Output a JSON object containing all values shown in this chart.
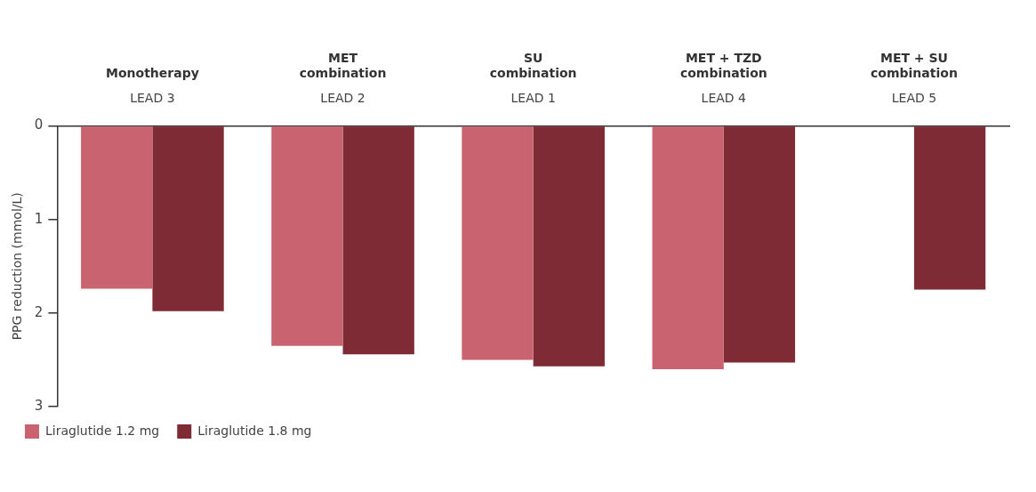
{
  "chart_data": {
    "type": "bar",
    "categories": [
      "Monotherapy",
      "MET\ncombination",
      "SU\ncombination",
      "MET + TZD\ncombination",
      "MET + SU\ncombination"
    ],
    "series": [
      {
        "name": "Liraglutide 1.2 mg",
        "color": "#c8636f",
        "values": [
          1.74,
          2.35,
          2.5,
          2.6,
          null
        ]
      },
      {
        "name": "Liraglutide 1.8 mg",
        "color": "#7e2b36",
        "values": [
          1.98,
          2.44,
          2.57,
          2.53,
          1.75
        ]
      }
    ],
    "ylabel": "PPG reduction (mmol/L)",
    "ylim": [
      3,
      0
    ],
    "yticks": [
      0,
      1,
      2,
      3
    ],
    "annotations": [
      "LEAD 3",
      "LEAD 2",
      "LEAD 1",
      "LEAD 4",
      "LEAD 5"
    ],
    "grid": false,
    "legend": "bottom left"
  }
}
